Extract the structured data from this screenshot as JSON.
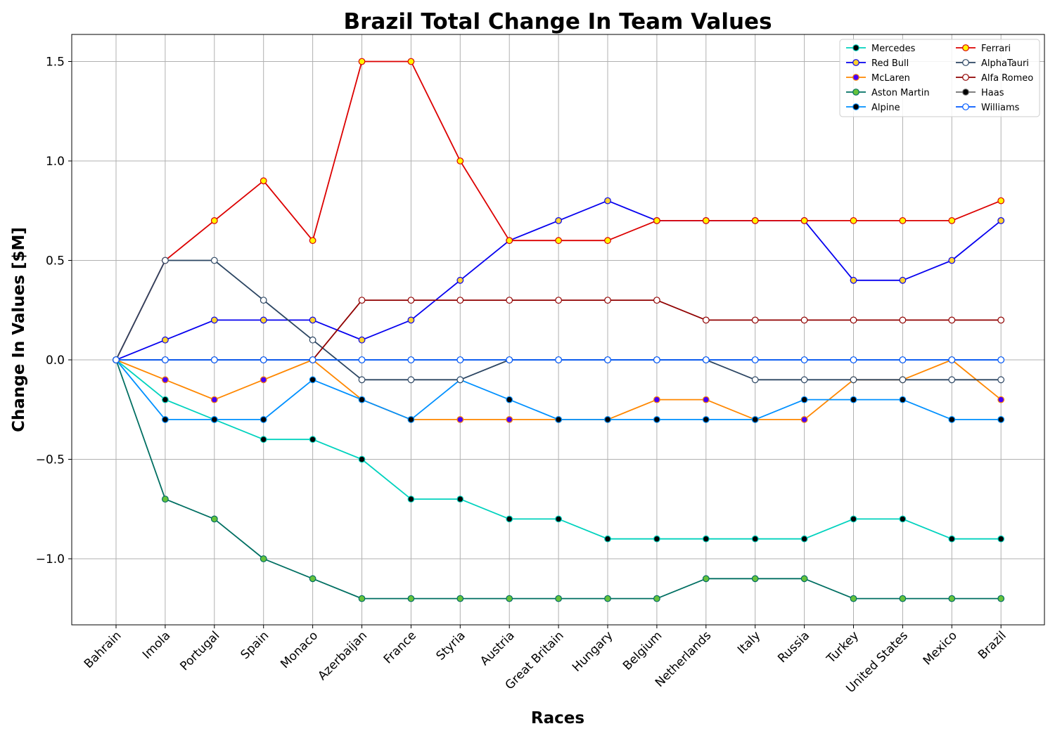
{
  "chart_data": {
    "type": "line",
    "title": "Brazil Total Change In Team Values",
    "xlabel": "Races",
    "ylabel": "Change In Values [$M]",
    "ylim": [
      -1.3,
      1.63
    ],
    "yticks": [
      -1.0,
      -0.5,
      0.0,
      0.5,
      1.0,
      1.5
    ],
    "ytick_labels": [
      "−1.0",
      "−0.5",
      "0.0",
      "0.5",
      "1.0",
      "1.5"
    ],
    "grid": true,
    "legend_position": "top-right",
    "categories": [
      "Bahrain",
      "Imola",
      "Portugal",
      "Spain",
      "Monaco",
      "Azerbaijan",
      "France",
      "Styria",
      "Austria",
      "Great Britain",
      "Hungary",
      "Belgium",
      "Netherlands",
      "Italy",
      "Russia",
      "Turkey",
      "United States",
      "Mexico",
      "Brazil"
    ],
    "series": [
      {
        "name": "Mercedes",
        "color": "#00d2be",
        "marker_face": "#000000",
        "values": [
          0,
          -0.2,
          -0.3,
          -0.4,
          -0.4,
          -0.5,
          -0.7,
          -0.7,
          -0.8,
          -0.8,
          -0.9,
          -0.9,
          -0.9,
          -0.9,
          -0.9,
          -0.8,
          -0.8,
          -0.9,
          -0.9
        ]
      },
      {
        "name": "Red Bull",
        "color": "#0600ef",
        "marker_face": "#ffd12e",
        "values": [
          0,
          0.1,
          0.2,
          0.2,
          0.2,
          0.1,
          0.2,
          0.4,
          0.6,
          0.7,
          0.8,
          0.7,
          0.7,
          0.7,
          0.7,
          0.4,
          0.4,
          0.5,
          0.7
        ]
      },
      {
        "name": "McLaren",
        "color": "#ff8700",
        "marker_face": "#4700ff",
        "values": [
          0,
          -0.1,
          -0.2,
          -0.1,
          0,
          -0.2,
          -0.3,
          -0.3,
          -0.3,
          -0.3,
          -0.3,
          -0.2,
          -0.2,
          -0.3,
          -0.3,
          -0.1,
          -0.1,
          0,
          -0.2
        ]
      },
      {
        "name": "Aston Martin",
        "color": "#006f62",
        "marker_face": "#66c23b",
        "values": [
          0,
          -0.7,
          -0.8,
          -1.0,
          -1.1,
          -1.2,
          -1.2,
          -1.2,
          -1.2,
          -1.2,
          -1.2,
          -1.2,
          -1.1,
          -1.1,
          -1.1,
          -1.2,
          -1.2,
          -1.2,
          -1.2
        ]
      },
      {
        "name": "Alpine",
        "color": "#0090ff",
        "marker_face": "#000000",
        "values": [
          0,
          -0.3,
          -0.3,
          -0.3,
          -0.1,
          -0.2,
          -0.3,
          -0.1,
          -0.2,
          -0.3,
          -0.3,
          -0.3,
          -0.3,
          -0.3,
          -0.2,
          -0.2,
          -0.2,
          -0.3,
          -0.3
        ]
      },
      {
        "name": "Ferrari",
        "color": "#dc0000",
        "marker_face": "#fff500",
        "values": [
          0,
          0.5,
          0.7,
          0.9,
          0.6,
          1.5,
          1.5,
          1.0,
          0.6,
          0.6,
          0.6,
          0.7,
          0.7,
          0.7,
          0.7,
          0.7,
          0.7,
          0.7,
          0.8
        ]
      },
      {
        "name": "AlphaTauri",
        "color": "#2b4562",
        "marker_face": "#ffffff",
        "values": [
          0,
          0.5,
          0.5,
          0.3,
          0.1,
          -0.1,
          -0.1,
          -0.1,
          0,
          0,
          0,
          0,
          0,
          -0.1,
          -0.1,
          -0.1,
          -0.1,
          -0.1,
          -0.1
        ]
      },
      {
        "name": "Alfa Romeo",
        "color": "#900000",
        "marker_face": "#ffffff",
        "values": [
          0,
          0,
          0,
          0,
          0,
          0.3,
          0.3,
          0.3,
          0.3,
          0.3,
          0.3,
          0.3,
          0.2,
          0.2,
          0.2,
          0.2,
          0.2,
          0.2,
          0.2
        ]
      },
      {
        "name": "Haas",
        "color": "#6e6e6e",
        "marker_face": "#000000",
        "values": [
          0,
          0,
          0,
          0,
          0,
          0,
          0,
          0,
          0,
          0,
          0,
          0,
          0,
          0,
          0,
          0,
          0,
          0,
          0
        ]
      },
      {
        "name": "Williams",
        "color": "#005aff",
        "marker_face": "#ffffff",
        "values": [
          0,
          0,
          0,
          0,
          0,
          0,
          0,
          0,
          0,
          0,
          0,
          0,
          0,
          0,
          0,
          0,
          0,
          0,
          0
        ]
      }
    ]
  }
}
